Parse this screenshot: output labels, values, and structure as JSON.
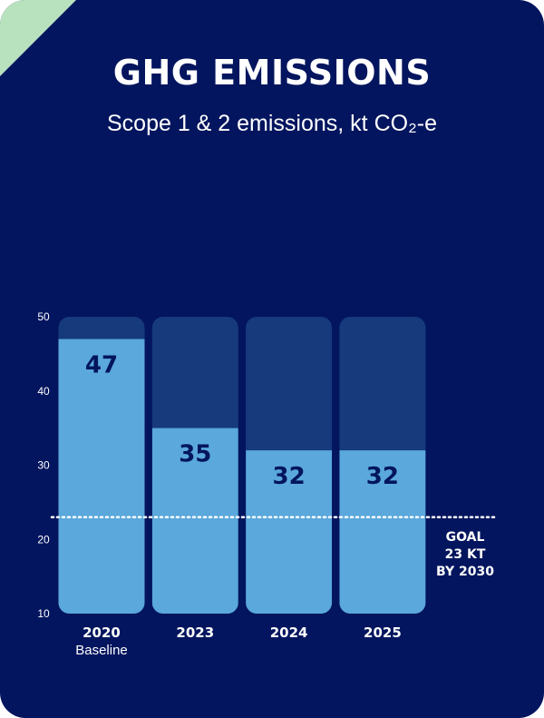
{
  "chart_data": {
    "type": "bar",
    "title": "GHG EMISSIONS",
    "subtitle": "Scope 1 & 2 emissions, kt CO₂-e",
    "categories": [
      "2020",
      "2023",
      "2024",
      "2025"
    ],
    "category_sublabels": [
      "Baseline",
      "",
      "",
      ""
    ],
    "values": [
      47,
      35,
      32,
      32
    ],
    "data_labels": [
      "47",
      "35",
      "32",
      "32"
    ],
    "y_ticks": [
      "50",
      "40",
      "30",
      "20",
      "10"
    ],
    "ylim": [
      10,
      50
    ],
    "grid": false,
    "goal": {
      "value": 23,
      "label_lines": [
        "GOAL",
        "23 KT",
        "BY 2030"
      ]
    },
    "colors": {
      "background": "#03155e",
      "bar_track": "#163a7c",
      "bar_fill": "#5aa8dc",
      "corner": "#b8e2bd",
      "text": "#ffffff"
    }
  }
}
